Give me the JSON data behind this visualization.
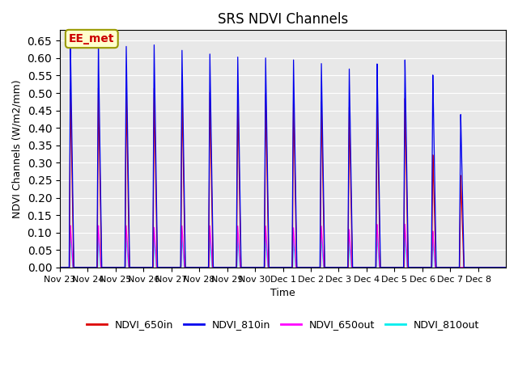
{
  "title": "SRS NDVI Channels",
  "ylabel": "NDVI Channels (W/m2/mm)",
  "xlabel": "Time",
  "annotation": "EE_met",
  "annotation_color": "#cc0000",
  "annotation_bg": "#ffffcc",
  "annotation_border": "#999900",
  "ylim": [
    0.0,
    0.68
  ],
  "yticks": [
    0.0,
    0.05,
    0.1,
    0.15,
    0.2,
    0.25,
    0.3,
    0.35,
    0.4,
    0.45,
    0.5,
    0.55,
    0.6,
    0.65
  ],
  "num_cycles": 16,
  "date_labels": [
    "Nov 23",
    "Nov 24",
    "Nov 25",
    "Nov 26",
    "Nov 27",
    "Nov 28",
    "Nov 29",
    "Nov 30",
    "Dec 1",
    "Dec 2",
    "Dec 3",
    "Dec 4",
    "Dec 5",
    "Dec 6",
    "Dec 7",
    "Dec 8"
  ],
  "colors": {
    "NDVI_650in": "#dd0000",
    "NDVI_810in": "#0000ee",
    "NDVI_650out": "#ff00ff",
    "NDVI_810out": "#00eeee"
  },
  "peak_810in": [
    0.63,
    0.635,
    0.635,
    0.64,
    0.625,
    0.615,
    0.607,
    0.605,
    0.6,
    0.59,
    0.575,
    0.59,
    0.6,
    0.555,
    0.44,
    0.0
  ],
  "peak_650in": [
    0.51,
    0.515,
    0.515,
    0.515,
    0.51,
    0.505,
    0.5,
    0.5,
    0.495,
    0.48,
    0.465,
    0.48,
    0.49,
    0.325,
    0.265,
    0.0
  ],
  "peak_650out": [
    0.12,
    0.12,
    0.12,
    0.115,
    0.12,
    0.12,
    0.12,
    0.12,
    0.115,
    0.12,
    0.11,
    0.125,
    0.125,
    0.105,
    0.0,
    0.0
  ],
  "peak_810out": [
    0.09,
    0.095,
    0.09,
    0.09,
    0.09,
    0.085,
    0.085,
    0.085,
    0.08,
    0.085,
    0.08,
    0.095,
    0.095,
    0.08,
    0.0,
    0.0
  ],
  "background_color": "#e8e8e8",
  "grid_color": "#ffffff"
}
